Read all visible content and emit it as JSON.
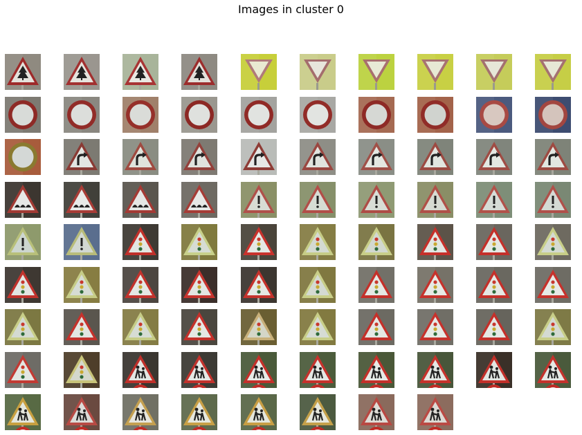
{
  "figure": {
    "title": "Images in cluster 0"
  },
  "thumbnails": [
    {
      "sign": "triangle-tree",
      "bg": "#8f8a80",
      "border": "#9e2a2a",
      "fill": "#e4e2dc"
    },
    {
      "sign": "triangle-tree",
      "bg": "#9a968f",
      "border": "#a23030",
      "fill": "#e6e4de"
    },
    {
      "sign": "triangle-tree",
      "bg": "#a8b49a",
      "border": "#a83434",
      "fill": "#e9e8e2"
    },
    {
      "sign": "triangle-tree",
      "bg": "#8e8a82",
      "border": "#9c2c2c",
      "fill": "#e2e0da"
    },
    {
      "sign": "yield",
      "bg": "#c7cf3a",
      "border": "#b07a7a",
      "fill": "#e9ead2"
    },
    {
      "sign": "yield",
      "bg": "#c9cc8a",
      "border": "#a46d6d",
      "fill": "#e7e6dc"
    },
    {
      "sign": "yield",
      "bg": "#bcd240",
      "border": "#a86f6f",
      "fill": "#e8ead6"
    },
    {
      "sign": "yield",
      "bg": "#c8d044",
      "border": "#a87272",
      "fill": "#e7e9d4"
    },
    {
      "sign": "yield",
      "bg": "#c5cc5a",
      "border": "#a47070",
      "fill": "#e6e7d8"
    },
    {
      "sign": "yield",
      "bg": "#c6ce46",
      "border": "#a57171",
      "fill": "#e7e8d6"
    },
    {
      "sign": "circle",
      "bg": "#7d7a72",
      "border": "#8e2a26",
      "fill": "#d8dbd8"
    },
    {
      "sign": "circle",
      "bg": "#8a8780",
      "border": "#922c28",
      "fill": "#dcdedb"
    },
    {
      "sign": "circle",
      "bg": "#a0806a",
      "border": "#96302a",
      "fill": "#dadcd8"
    },
    {
      "sign": "circle",
      "bg": "#9a978f",
      "border": "#8c2824",
      "fill": "#dfe1de"
    },
    {
      "sign": "circle",
      "bg": "#a3a39f",
      "border": "#902a26",
      "fill": "#e1e3e0"
    },
    {
      "sign": "circle",
      "bg": "#a8a8a4",
      "border": "#922c28",
      "fill": "#e2e4e1"
    },
    {
      "sign": "circle",
      "bg": "#a56a52",
      "border": "#8e2a26",
      "fill": "#d6d8d4"
    },
    {
      "sign": "circle",
      "bg": "#a3634a",
      "border": "#902c28",
      "fill": "#d0d3cf"
    },
    {
      "sign": "circle",
      "bg": "#4b5a7e",
      "border": "#a84a44",
      "fill": "#d8c8c0"
    },
    {
      "sign": "circle",
      "bg": "#3d4c70",
      "border": "#a24640",
      "fill": "#d4c4bc"
    },
    {
      "sign": "circle",
      "bg": "#a85c3c",
      "border": "#8a7a30",
      "fill": "#d4d8d6"
    },
    {
      "sign": "triangle-curve",
      "bg": "#7c7a72",
      "border": "#8a3a34",
      "fill": "#e2e6e2"
    },
    {
      "sign": "triangle-curve",
      "bg": "#8a8d82",
      "border": "#a04a40",
      "fill": "#dfe4dc"
    },
    {
      "sign": "triangle-curve",
      "bg": "#7e7a72",
      "border": "#94403a",
      "fill": "#e0e3de"
    },
    {
      "sign": "triangle-curve",
      "bg": "#b9bcb8",
      "border": "#8e3c36",
      "fill": "#e6e9e6"
    },
    {
      "sign": "triangle-curve",
      "bg": "#8e8e86",
      "border": "#9a4640",
      "fill": "#e1e4df"
    },
    {
      "sign": "triangle-curve",
      "bg": "#8a8e86",
      "border": "#a05048",
      "fill": "#e4e8e2"
    },
    {
      "sign": "triangle-curve",
      "bg": "#7f847a",
      "border": "#9c4a42",
      "fill": "#e1e6e0"
    },
    {
      "sign": "triangle-curve",
      "bg": "#80857c",
      "border": "#a04c44",
      "fill": "#e3e8e2"
    },
    {
      "sign": "triangle-curve",
      "bg": "#7e8378",
      "border": "#9e4a42",
      "fill": "#e2e7e1"
    },
    {
      "sign": "triangle-bumps",
      "bg": "#3c3630",
      "border": "#a23a34",
      "fill": "#e6e8e6"
    },
    {
      "sign": "triangle-bumps",
      "bg": "#41403a",
      "border": "#a83c36",
      "fill": "#e8eae8"
    },
    {
      "sign": "triangle-bumps",
      "bg": "#5a564e",
      "border": "#a43a34",
      "fill": "#e4e6e4"
    },
    {
      "sign": "triangle-bumps",
      "bg": "#6e6a62",
      "border": "#a63c36",
      "fill": "#e6e8e6"
    },
    {
      "sign": "triangle-bang",
      "bg": "#8a9066",
      "border": "#b0504a",
      "fill": "#d8dcd4"
    },
    {
      "sign": "triangle-bang",
      "bg": "#86906a",
      "border": "#b24e48",
      "fill": "#d6dcd4"
    },
    {
      "sign": "triangle-bang",
      "bg": "#8f9a74",
      "border": "#ae4c46",
      "fill": "#d8ddd6"
    },
    {
      "sign": "triangle-bang",
      "bg": "#8a8e66",
      "border": "#b05048",
      "fill": "#d6dad2"
    },
    {
      "sign": "triangle-bang",
      "bg": "#7e8e78",
      "border": "#b2524a",
      "fill": "#d6dcd6"
    },
    {
      "sign": "triangle-bang",
      "bg": "#7a8874",
      "border": "#b0504a",
      "fill": "#d4dad4"
    },
    {
      "sign": "triangle-bang",
      "bg": "#8e9a6c",
      "border": "#b8c07a",
      "fill": "#cdd6cf"
    },
    {
      "sign": "triangle-bang",
      "bg": "#5a6e8e",
      "border": "#b8bc7a",
      "fill": "#d2d8d2"
    },
    {
      "sign": "triangle-light",
      "bg": "#3e3a34",
      "border": "#c0302a",
      "fill": "#e2e6e2"
    },
    {
      "sign": "triangle-light",
      "bg": "#807a3e",
      "border": "#c8d08a",
      "fill": "#d6dcd4"
    },
    {
      "sign": "triangle-light",
      "bg": "#4a443a",
      "border": "#c8322c",
      "fill": "#e4e8e4"
    },
    {
      "sign": "triangle-light",
      "bg": "#857d44",
      "border": "#c6cc86",
      "fill": "#d4dad2"
    },
    {
      "sign": "triangle-light",
      "bg": "#7a7442",
      "border": "#c8ce88",
      "fill": "#d2d8d0"
    },
    {
      "sign": "triangle-light",
      "bg": "#5c5348",
      "border": "#c6302a",
      "fill": "#e2e6e2"
    },
    {
      "sign": "triangle-light",
      "bg": "#6a665e",
      "border": "#c4302a",
      "fill": "#e4e8e4"
    },
    {
      "sign": "triangle-light",
      "bg": "#6e6a60",
      "border": "#c8ce88",
      "fill": "#d4dad2"
    },
    {
      "sign": "triangle-light",
      "bg": "#3e3832",
      "border": "#c0322c",
      "fill": "#e2e6e2"
    },
    {
      "sign": "triangle-light",
      "bg": "#877d42",
      "border": "#c6cc86",
      "fill": "#d6dcd4"
    },
    {
      "sign": "triangle-light",
      "bg": "#4c4640",
      "border": "#c2322c",
      "fill": "#e4e8e4"
    },
    {
      "sign": "triangle-light",
      "bg": "#3b2e2a",
      "border": "#c6342e",
      "fill": "#e2e6e2"
    },
    {
      "sign": "triangle-light",
      "bg": "#3c3630",
      "border": "#c4322c",
      "fill": "#e4e8e4"
    },
    {
      "sign": "triangle-light",
      "bg": "#807840",
      "border": "#c8ce88",
      "fill": "#d4dad2"
    },
    {
      "sign": "triangle-light",
      "bg": "#727068",
      "border": "#c4302a",
      "fill": "#e4e8e4"
    },
    {
      "sign": "triangle-light",
      "bg": "#767268",
      "border": "#c6322c",
      "fill": "#e6eae6"
    },
    {
      "sign": "triangle-light",
      "bg": "#6a6860",
      "border": "#c4302a",
      "fill": "#e4e8e4"
    },
    {
      "sign": "triangle-light",
      "bg": "#6e6c64",
      "border": "#c6322c",
      "fill": "#e6eae6"
    },
    {
      "sign": "triangle-light",
      "bg": "#7c7842",
      "border": "#c8ce88",
      "fill": "#d4dad2"
    },
    {
      "sign": "triangle-light",
      "bg": "#5a564e",
      "border": "#c4322c",
      "fill": "#e2e6e2"
    },
    {
      "sign": "triangle-light",
      "bg": "#847c44",
      "border": "#c6cc86",
      "fill": "#d6dcd4"
    },
    {
      "sign": "triangle-light",
      "bg": "#4a463e",
      "border": "#c4302a",
      "fill": "#e4e8e4"
    },
    {
      "sign": "triangle-light",
      "bg": "#6a5e32",
      "border": "#c8b07a",
      "fill": "#d4d6c8"
    },
    {
      "sign": "triangle-light",
      "bg": "#827a40",
      "border": "#c8ce88",
      "fill": "#d6dcd4"
    },
    {
      "sign": "triangle-light",
      "bg": "#6c6a62",
      "border": "#c4302a",
      "fill": "#e4e8e4"
    },
    {
      "sign": "triangle-light",
      "bg": "#706e66",
      "border": "#c6322c",
      "fill": "#e6eae6"
    },
    {
      "sign": "triangle-light",
      "bg": "#66645c",
      "border": "#c4302a",
      "fill": "#e4e8e4"
    },
    {
      "sign": "triangle-light",
      "bg": "#7e7a46",
      "border": "#c8ce88",
      "fill": "#d4dad2"
    },
    {
      "sign": "triangle-light",
      "bg": "#6e6c66",
      "border": "#c23a34",
      "fill": "#e2e6e2"
    },
    {
      "sign": "triangle-light",
      "bg": "#4e3e2a",
      "border": "#c8c47a",
      "fill": "#d4d8cc"
    },
    {
      "sign": "triangle-kids",
      "bg": "#3a3630",
      "border": "#c0302a",
      "fill": "#e2e6e2"
    },
    {
      "sign": "triangle-kids",
      "bg": "#3c3a34",
      "border": "#c2322c",
      "fill": "#e4e8e4"
    },
    {
      "sign": "triangle-kids",
      "bg": "#4a5a3a",
      "border": "#c4302a",
      "fill": "#e6eae6"
    },
    {
      "sign": "triangle-kids",
      "bg": "#4c5c3c",
      "border": "#c6322c",
      "fill": "#e4e8e4"
    },
    {
      "sign": "triangle-kids",
      "bg": "#4a5838",
      "border": "#c4302a",
      "fill": "#e6eae6"
    },
    {
      "sign": "triangle-kids",
      "bg": "#48563a",
      "border": "#c6322c",
      "fill": "#e4e8e4"
    },
    {
      "sign": "triangle-kids",
      "bg": "#3a3028",
      "border": "#c2302a",
      "fill": "#e2e6e2"
    },
    {
      "sign": "triangle-kids",
      "bg": "#4a5a3c",
      "border": "#c4322c",
      "fill": "#e4e8e4"
    },
    {
      "sign": "triangle-kids",
      "bg": "#586a44",
      "border": "#c8a040",
      "fill": "#e4e6dc"
    },
    {
      "sign": "triangle-kids",
      "bg": "#6a4a40",
      "border": "#b84a44",
      "fill": "#dcdcd8"
    },
    {
      "sign": "triangle-kids",
      "bg": "#707064",
      "border": "#c4a050",
      "fill": "#e6e6de"
    },
    {
      "sign": "triangle-kids",
      "bg": "#5e6a4c",
      "border": "#c8a046",
      "fill": "#e6e8de"
    },
    {
      "sign": "triangle-kids",
      "bg": "#5a6848",
      "border": "#c89e44",
      "fill": "#e4e6dc"
    },
    {
      "sign": "triangle-kids",
      "bg": "#4c5a40",
      "border": "#c4a04a",
      "fill": "#e6e8de"
    },
    {
      "sign": "triangle-kids",
      "bg": "#8a6a5c",
      "border": "#b84842",
      "fill": "#dedcd6"
    },
    {
      "sign": "triangle-kids",
      "bg": "#8c6c5e",
      "border": "#ba4a44",
      "fill": "#dcdad4"
    }
  ]
}
